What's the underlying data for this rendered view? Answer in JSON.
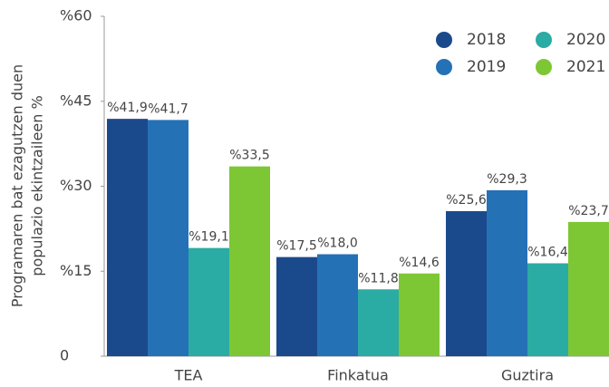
{
  "chart_data": {
    "type": "bar",
    "ylabel": [
      "Programaren bat ezagutzen duen",
      "populazio ekintzaileen %"
    ],
    "categories": [
      "TEA",
      "Finkatua",
      "Guztira"
    ],
    "series": [
      {
        "name": "2018",
        "color": "#1b4a8c",
        "values": [
          41.9,
          17.5,
          25.6
        ],
        "value_labels": [
          "%41,9",
          "%17,5",
          "%25,6"
        ]
      },
      {
        "name": "2019",
        "color": "#2571b6",
        "values": [
          41.7,
          18.0,
          29.3
        ],
        "value_labels": [
          "%41,7",
          "%18,0",
          "%29,3"
        ]
      },
      {
        "name": "2020",
        "color": "#2aaba3",
        "values": [
          19.1,
          11.8,
          16.4
        ],
        "value_labels": [
          "%19,1",
          "%11,8",
          "%16,4"
        ]
      },
      {
        "name": "2021",
        "color": "#7dc735",
        "values": [
          33.5,
          14.6,
          23.7
        ],
        "value_labels": [
          "%33,5",
          "%14,6",
          "%23,7"
        ]
      }
    ],
    "ylim": [
      0,
      60
    ],
    "yticks": [
      0,
      {
        "value": 15,
        "label": "%15"
      },
      {
        "value": 30,
        "label": "%30"
      },
      {
        "value": 45,
        "label": "%45"
      },
      {
        "value": 60,
        "label": "%60"
      }
    ],
    "legend": "upper right"
  }
}
